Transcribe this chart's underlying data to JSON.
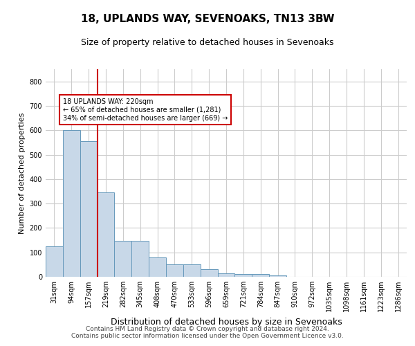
{
  "title": "18, UPLANDS WAY, SEVENOAKS, TN13 3BW",
  "subtitle": "Size of property relative to detached houses in Sevenoaks",
  "xlabel": "Distribution of detached houses by size in Sevenoaks",
  "ylabel": "Number of detached properties",
  "categories": [
    "31sqm",
    "94sqm",
    "157sqm",
    "219sqm",
    "282sqm",
    "345sqm",
    "408sqm",
    "470sqm",
    "533sqm",
    "596sqm",
    "659sqm",
    "721sqm",
    "784sqm",
    "847sqm",
    "910sqm",
    "972sqm",
    "1035sqm",
    "1098sqm",
    "1161sqm",
    "1223sqm",
    "1286sqm"
  ],
  "values": [
    125,
    600,
    555,
    345,
    148,
    148,
    78,
    52,
    52,
    30,
    14,
    12,
    12,
    5,
    0,
    0,
    0,
    0,
    0,
    0,
    0
  ],
  "bar_color": "#c8d8e8",
  "bar_edge_color": "#6699bb",
  "annotation_text": "18 UPLANDS WAY: 220sqm\n← 65% of detached houses are smaller (1,281)\n34% of semi-detached houses are larger (669) →",
  "annotation_box_color": "#ffffff",
  "annotation_box_edge_color": "#cc0000",
  "annotation_text_color": "#000000",
  "vline_color": "#cc0000",
  "ylim": [
    0,
    850
  ],
  "yticks": [
    0,
    100,
    200,
    300,
    400,
    500,
    600,
    700,
    800
  ],
  "grid_color": "#cccccc",
  "background_color": "#ffffff",
  "footer": "Contains HM Land Registry data © Crown copyright and database right 2024.\nContains public sector information licensed under the Open Government Licence v3.0.",
  "title_fontsize": 11,
  "subtitle_fontsize": 9,
  "xlabel_fontsize": 9,
  "ylabel_fontsize": 8,
  "tick_fontsize": 7,
  "footer_fontsize": 6.5
}
